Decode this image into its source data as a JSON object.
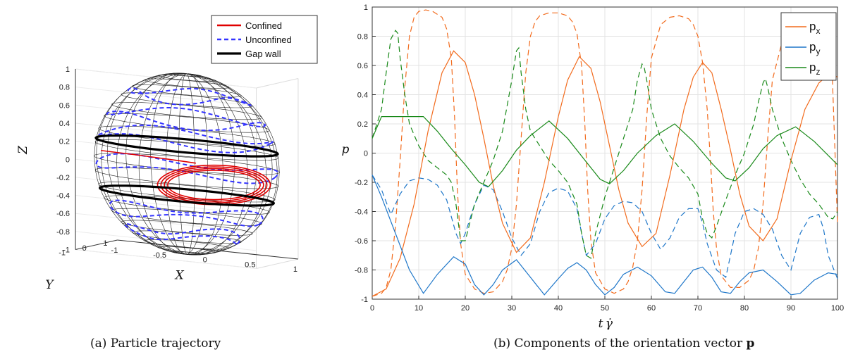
{
  "captions": {
    "a": "(a) Particle trajectory",
    "b_prefix": "(b) Components of the orientation vector ",
    "b_bold": "p"
  },
  "chart_data": [
    {
      "type": "line3d",
      "panel": "a",
      "xlabel": "X",
      "ylabel": "Y",
      "zlabel": "Z",
      "x_ticks": [
        "-1",
        "-0.5",
        "0",
        "0.5",
        "1"
      ],
      "y_ticks": [
        "-1",
        "0",
        "1"
      ],
      "z_ticks": [
        "-1",
        "-0.8",
        "-0.6",
        "-0.4",
        "-0.2",
        "0",
        "0.2",
        "0.4",
        "0.6",
        "0.8",
        "1"
      ],
      "xlim": [
        -1,
        1
      ],
      "ylim": [
        -1,
        1
      ],
      "zlim": [
        -1,
        1
      ],
      "grid": true,
      "legend_position": "top-right",
      "legend": [
        {
          "label": "Confined",
          "color": "#e00000",
          "style": "solid"
        },
        {
          "label": "Unconfined",
          "color": "#3333ff",
          "style": "dashed"
        },
        {
          "label": "Gap wall",
          "color": "#000000",
          "style": "solid"
        }
      ],
      "gap_wall_z": [
        0.2,
        -0.35
      ],
      "sphere_radius": 1
    },
    {
      "type": "line",
      "panel": "b",
      "xlabel": "t",
      "ylabel": "p",
      "xlim": [
        0,
        100
      ],
      "ylim": [
        -1,
        1
      ],
      "x_ticks": [
        "0",
        "10",
        "20",
        "30",
        "40",
        "50",
        "60",
        "70",
        "80",
        "90",
        "100"
      ],
      "y_ticks": [
        "-1",
        "-0.8",
        "-0.6",
        "-0.4",
        "-0.2",
        "0",
        "0.2",
        "0.4",
        "0.6",
        "0.8",
        "1"
      ],
      "grid": true,
      "legend_position": "top-right",
      "series": [
        {
          "name": "p",
          "sub": "x",
          "color": "#f26b1d",
          "style": "solid",
          "x": [
            0,
            3,
            6,
            9,
            12,
            15,
            17.5,
            20,
            22,
            24,
            26,
            28,
            31,
            34,
            37,
            40,
            42,
            44.5,
            47,
            49,
            51,
            53,
            55,
            58,
            61,
            64,
            67,
            69,
            71,
            73,
            75,
            77,
            79,
            81,
            84,
            87,
            90,
            93,
            96,
            98.5,
            100
          ],
          "y": [
            -0.98,
            -0.93,
            -0.72,
            -0.35,
            0.15,
            0.55,
            0.7,
            0.62,
            0.4,
            0.1,
            -0.22,
            -0.48,
            -0.68,
            -0.58,
            -0.2,
            0.25,
            0.5,
            0.66,
            0.58,
            0.35,
            0.05,
            -0.25,
            -0.48,
            -0.64,
            -0.55,
            -0.15,
            0.3,
            0.52,
            0.62,
            0.55,
            0.3,
            0.02,
            -0.28,
            -0.5,
            -0.6,
            -0.45,
            -0.05,
            0.3,
            0.48,
            0.55,
            0.52
          ]
        },
        {
          "name": "p",
          "sub": "y",
          "color": "#1f77c9",
          "style": "solid",
          "x": [
            0,
            2,
            5,
            8,
            11,
            14,
            17.5,
            20,
            22,
            24,
            26,
            28,
            31,
            34,
            37,
            40,
            42,
            44,
            46,
            48,
            50,
            52,
            54,
            57,
            60,
            63,
            65,
            67,
            69,
            71,
            73,
            75,
            77,
            79,
            81,
            84,
            87,
            90,
            92,
            95,
            98,
            100
          ],
          "y": [
            -0.15,
            -0.3,
            -0.55,
            -0.8,
            -0.96,
            -0.83,
            -0.71,
            -0.76,
            -0.9,
            -0.97,
            -0.9,
            -0.8,
            -0.73,
            -0.85,
            -0.97,
            -0.86,
            -0.79,
            -0.75,
            -0.8,
            -0.9,
            -0.97,
            -0.92,
            -0.83,
            -0.78,
            -0.84,
            -0.95,
            -0.96,
            -0.88,
            -0.8,
            -0.78,
            -0.85,
            -0.95,
            -0.96,
            -0.88,
            -0.82,
            -0.8,
            -0.88,
            -0.97,
            -0.96,
            -0.87,
            -0.82,
            -0.83
          ]
        },
        {
          "name": "p",
          "sub": "z",
          "color": "#1a8a1a",
          "style": "solid",
          "x": [
            0,
            2,
            6,
            11,
            14,
            17,
            20,
            23,
            25,
            28,
            31,
            34,
            38,
            42,
            46,
            49,
            51,
            54,
            57,
            61,
            65,
            69,
            73,
            76,
            78,
            81,
            84,
            87,
            91,
            95,
            100
          ],
          "y": [
            0.1,
            0.25,
            0.25,
            0.25,
            0.15,
            0.03,
            -0.08,
            -0.2,
            -0.23,
            -0.12,
            0.02,
            0.12,
            0.22,
            0.1,
            -0.06,
            -0.18,
            -0.21,
            -0.12,
            0.0,
            0.12,
            0.2,
            0.08,
            -0.07,
            -0.17,
            -0.19,
            -0.1,
            0.03,
            0.12,
            0.18,
            0.08,
            -0.08
          ]
        }
      ],
      "dashed_series": [
        {
          "color": "#f26b1d",
          "x": [
            0,
            2,
            3,
            4,
            5,
            6,
            7,
            8,
            9,
            10,
            11.5,
            13,
            15,
            16,
            17,
            17.7,
            18.3,
            19,
            20,
            22,
            24,
            26,
            28,
            29,
            30,
            31,
            32,
            33,
            34,
            35,
            36,
            38,
            40,
            42,
            43,
            44,
            45,
            45.7,
            46.3,
            47,
            48,
            50,
            52,
            54,
            55,
            56,
            57,
            58,
            59,
            60,
            62,
            64,
            66,
            68,
            69,
            70,
            71,
            72,
            72.7,
            73.3,
            74,
            75,
            77,
            79,
            81,
            82,
            83,
            84,
            85,
            86,
            88,
            90,
            92,
            94,
            96,
            98,
            98.7,
            100
          ],
          "y": [
            -0.98,
            -0.96,
            -0.92,
            -0.8,
            -0.5,
            -0.05,
            0.45,
            0.8,
            0.93,
            0.97,
            0.98,
            0.97,
            0.93,
            0.85,
            0.65,
            0.25,
            -0.25,
            -0.62,
            -0.83,
            -0.93,
            -0.96,
            -0.95,
            -0.88,
            -0.8,
            -0.65,
            -0.35,
            0.1,
            0.55,
            0.8,
            0.9,
            0.94,
            0.96,
            0.96,
            0.94,
            0.9,
            0.82,
            0.6,
            0.2,
            -0.25,
            -0.6,
            -0.82,
            -0.93,
            -0.96,
            -0.93,
            -0.88,
            -0.78,
            -0.6,
            -0.25,
            0.25,
            0.65,
            0.88,
            0.93,
            0.94,
            0.92,
            0.88,
            0.8,
            0.62,
            0.3,
            -0.05,
            -0.4,
            -0.65,
            -0.84,
            -0.92,
            -0.92,
            -0.87,
            -0.8,
            -0.65,
            -0.35,
            0.1,
            0.5,
            0.75,
            0.85,
            0.9,
            0.92,
            0.9,
            0.85,
            0.7,
            -0.48
          ]
        },
        {
          "color": "#1f77c9",
          "x": [
            0,
            2,
            4,
            6,
            8,
            10,
            12,
            14,
            16,
            18,
            19,
            20,
            22,
            24,
            26,
            28,
            30,
            32,
            34,
            36,
            38,
            40,
            42,
            44,
            45,
            46,
            48,
            50,
            52,
            54,
            56,
            58,
            60,
            62,
            64,
            66,
            68,
            70,
            71,
            72,
            74,
            76,
            78,
            80,
            82,
            84,
            86,
            88,
            90,
            92,
            94,
            96,
            97,
            98,
            100
          ],
          "y": [
            -0.15,
            -0.25,
            -0.42,
            -0.28,
            -0.19,
            -0.17,
            -0.18,
            -0.22,
            -0.32,
            -0.55,
            -0.62,
            -0.55,
            -0.35,
            -0.22,
            -0.25,
            -0.4,
            -0.58,
            -0.7,
            -0.62,
            -0.4,
            -0.27,
            -0.24,
            -0.26,
            -0.38,
            -0.55,
            -0.7,
            -0.62,
            -0.45,
            -0.36,
            -0.33,
            -0.34,
            -0.4,
            -0.55,
            -0.66,
            -0.58,
            -0.44,
            -0.38,
            -0.38,
            -0.48,
            -0.62,
            -0.8,
            -0.85,
            -0.55,
            -0.4,
            -0.38,
            -0.42,
            -0.52,
            -0.7,
            -0.8,
            -0.55,
            -0.44,
            -0.42,
            -0.52,
            -0.7,
            -0.86
          ]
        },
        {
          "color": "#1a8a1a",
          "x": [
            0,
            2,
            3,
            4,
            5,
            5.5,
            6,
            7,
            8,
            10,
            12,
            14,
            16,
            17,
            18,
            19,
            20,
            22,
            24,
            26,
            28,
            30,
            31,
            31.5,
            32,
            33,
            34,
            36,
            38,
            40,
            42,
            44,
            45,
            46,
            47,
            48,
            50,
            52,
            54,
            56,
            57,
            58,
            58.5,
            59,
            60,
            62,
            64,
            66,
            68,
            70,
            71,
            72,
            73,
            74,
            76,
            78,
            80,
            82,
            83,
            84,
            84.5,
            85,
            86,
            88,
            90,
            92,
            94,
            96,
            98,
            99,
            100
          ],
          "y": [
            0.1,
            0.3,
            0.55,
            0.78,
            0.84,
            0.82,
            0.65,
            0.4,
            0.2,
            0.05,
            -0.05,
            -0.1,
            -0.15,
            -0.2,
            -0.35,
            -0.6,
            -0.6,
            -0.35,
            -0.2,
            -0.05,
            0.15,
            0.5,
            0.7,
            0.72,
            0.55,
            0.3,
            0.15,
            0.05,
            -0.05,
            -0.12,
            -0.2,
            -0.35,
            -0.55,
            -0.7,
            -0.72,
            -0.55,
            -0.3,
            -0.1,
            0.1,
            0.3,
            0.5,
            0.61,
            0.58,
            0.5,
            0.3,
            0.1,
            -0.02,
            -0.1,
            -0.17,
            -0.28,
            -0.45,
            -0.55,
            -0.58,
            -0.5,
            -0.32,
            -0.15,
            0.0,
            0.2,
            0.35,
            0.48,
            0.51,
            0.45,
            0.3,
            0.1,
            -0.05,
            -0.18,
            -0.28,
            -0.35,
            -0.44,
            -0.45,
            -0.4
          ]
        }
      ]
    }
  ]
}
